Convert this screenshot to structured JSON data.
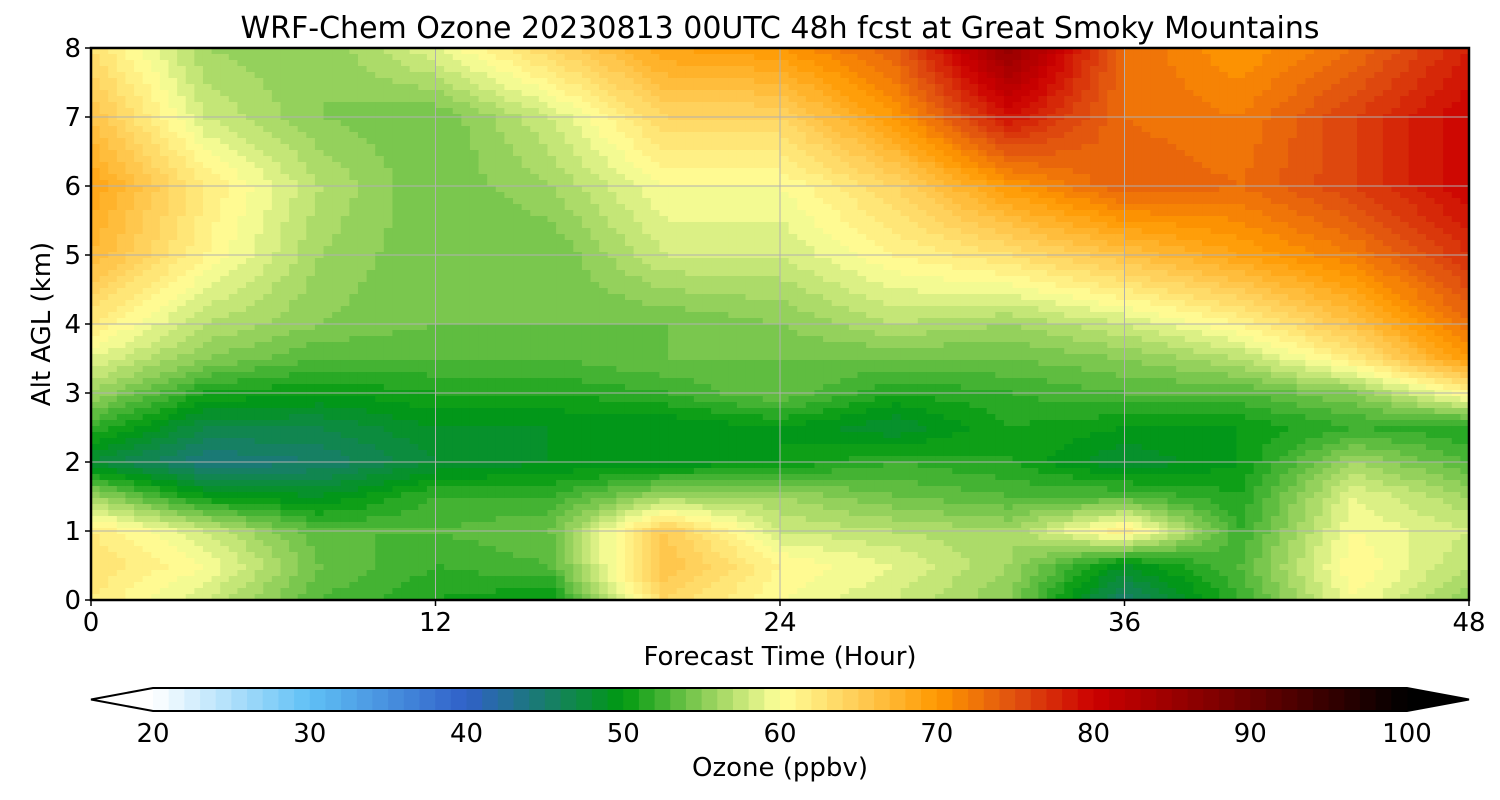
{
  "chart_data": {
    "type": "heatmap",
    "title": "WRF-Chem Ozone  20230813 00UTC 48h fcst at Great Smoky Mountains",
    "xlabel": "Forecast Time (Hour)",
    "ylabel": "Alt AGL (km)",
    "xlim": [
      0,
      48
    ],
    "ylim": [
      0,
      8
    ],
    "x_ticks": [
      0,
      12,
      24,
      36,
      48
    ],
    "y_ticks": [
      0,
      1,
      2,
      3,
      4,
      5,
      6,
      7,
      8
    ],
    "grid": true,
    "colorbar": {
      "label": "Ozone  (ppbv)",
      "orientation": "horizontal",
      "placement": "bottom",
      "range": [
        20,
        100
      ],
      "step": 1,
      "extend": "both",
      "ticks": [
        20,
        30,
        40,
        50,
        60,
        70,
        80,
        90,
        100
      ],
      "color_stops": [
        {
          "v": 20,
          "c": "#ffffff"
        },
        {
          "v": 30,
          "c": "#5fc0f5"
        },
        {
          "v": 40,
          "c": "#3060c8"
        },
        {
          "v": 50,
          "c": "#009a10"
        },
        {
          "v": 55,
          "c": "#88cc55"
        },
        {
          "v": 60,
          "c": "#ffff99"
        },
        {
          "v": 65,
          "c": "#ffcc55"
        },
        {
          "v": 70,
          "c": "#ff9900"
        },
        {
          "v": 75,
          "c": "#e05010"
        },
        {
          "v": 80,
          "c": "#cc0000"
        },
        {
          "v": 90,
          "c": "#6a0000"
        },
        {
          "v": 100,
          "c": "#000000"
        }
      ]
    },
    "grid_x": [
      0,
      4,
      8,
      12,
      16,
      20,
      24,
      28,
      32,
      36,
      40,
      44,
      48
    ],
    "grid_y": [
      0,
      0.5,
      1,
      1.5,
      2,
      2.5,
      3,
      3.5,
      4,
      5,
      6,
      7,
      8
    ],
    "z": [
      [
        62,
        58,
        53,
        51,
        50,
        64,
        60,
        58,
        55,
        45,
        52,
        60,
        55
      ],
      [
        63,
        60,
        54,
        52,
        53,
        66,
        61,
        59,
        56,
        49,
        53,
        61,
        57
      ],
      [
        62,
        58,
        53,
        53,
        54,
        65,
        58,
        57,
        56,
        62,
        52,
        60,
        58
      ],
      [
        56,
        50,
        49,
        52,
        52,
        56,
        56,
        54,
        53,
        53,
        51,
        59,
        56
      ],
      [
        48,
        44,
        45,
        48,
        49,
        49,
        50,
        52,
        51,
        48,
        50,
        56,
        53
      ],
      [
        52,
        47,
        47,
        49,
        49,
        49,
        50,
        48,
        51,
        50,
        50,
        52,
        51
      ],
      [
        56,
        51,
        50,
        51,
        51,
        52,
        54,
        51,
        52,
        53,
        53,
        55,
        61
      ],
      [
        59,
        55,
        53,
        53,
        53,
        54,
        54,
        54,
        54,
        55,
        57,
        62,
        70
      ],
      [
        62,
        57,
        55,
        54,
        54,
        54,
        55,
        57,
        56,
        58,
        61,
        66,
        73
      ],
      [
        67,
        61,
        56,
        54,
        54,
        58,
        58,
        61,
        63,
        66,
        69,
        72,
        77
      ],
      [
        69,
        62,
        57,
        54,
        56,
        60,
        60,
        64,
        70,
        74,
        73,
        76,
        80
      ],
      [
        66,
        58,
        55,
        54,
        58,
        64,
        64,
        70,
        79,
        73,
        72,
        76,
        80
      ],
      [
        63,
        56,
        55,
        59,
        64,
        69,
        70,
        74,
        86,
        73,
        70,
        73,
        78
      ]
    ]
  }
}
